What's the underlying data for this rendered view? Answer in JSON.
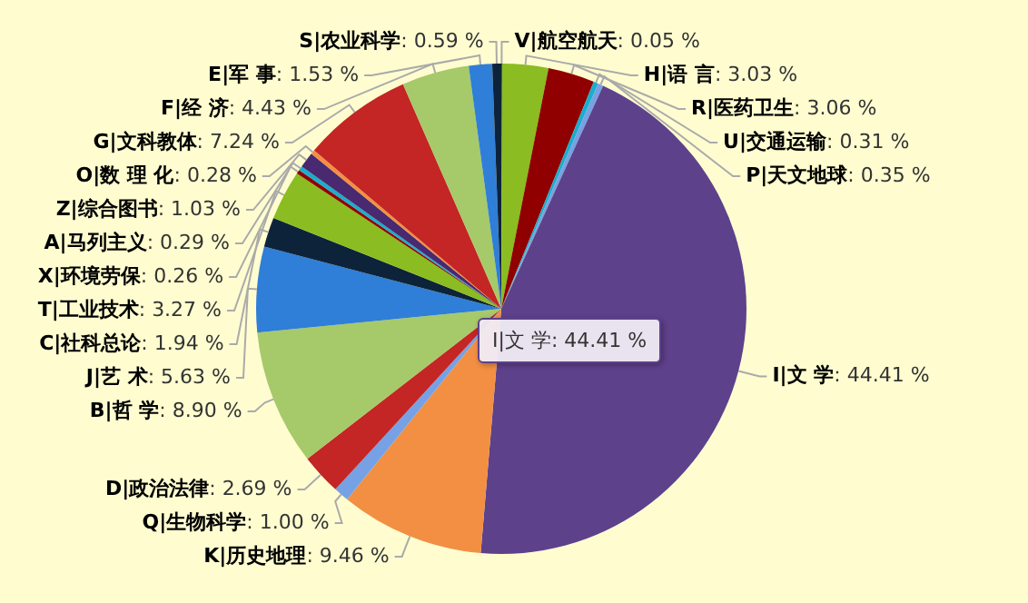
{
  "chart_data": {
    "type": "pie",
    "categories": [
      "V|航空航天",
      "H|语 言",
      "R|医药卫生",
      "U|交通运输",
      "P|天文地球",
      "I|文 学",
      "K|历史地理",
      "Q|生物科学",
      "D|政治法律",
      "B|哲 学",
      "J|艺 术",
      "C|社科总论",
      "T|工业技术",
      "X|环境劳保",
      "A|马列主义",
      "Z|综合图书",
      "O|数 理 化",
      "G|文科教体",
      "F|经 济",
      "E|军 事",
      "S|农业科学"
    ],
    "values": [
      0.05,
      3.03,
      3.06,
      0.31,
      0.35,
      44.41,
      9.46,
      1.0,
      2.69,
      8.9,
      5.63,
      1.94,
      3.27,
      0.26,
      0.29,
      1.03,
      0.28,
      7.24,
      4.43,
      1.53,
      0.59
    ],
    "value_labels": [
      ": 0.05 %",
      ": 3.03 %",
      ": 3.06 %",
      ": 0.31 %",
      ": 0.35 %",
      ": 44.41 %",
      ": 9.46 %",
      ": 1.00 %",
      ": 2.69 %",
      ": 8.90 %",
      ": 5.63 %",
      ": 1.94 %",
      ": 3.27 %",
      ": 0.26 %",
      ": 0.29 %",
      ": 1.03 %",
      ": 0.28 %",
      ": 7.24 %",
      ": 4.43 %",
      ": 1.53 %",
      ": 0.59 %"
    ],
    "colors": [
      "#0d233a",
      "#8bbc21",
      "#910000",
      "#1aadce",
      "#77a1e5",
      "#5e418b",
      "#f28f43",
      "#77a1e5",
      "#c42525",
      "#a6c96a",
      "#2f7ed8",
      "#0d233a",
      "#8bbc21",
      "#910000",
      "#1aadce",
      "#492970",
      "#f28f43",
      "#c42525",
      "#a6c96a",
      "#2f7ed8",
      "#0d233a"
    ],
    "annotations": [
      "I|文 学: 44.41 %"
    ]
  }
}
